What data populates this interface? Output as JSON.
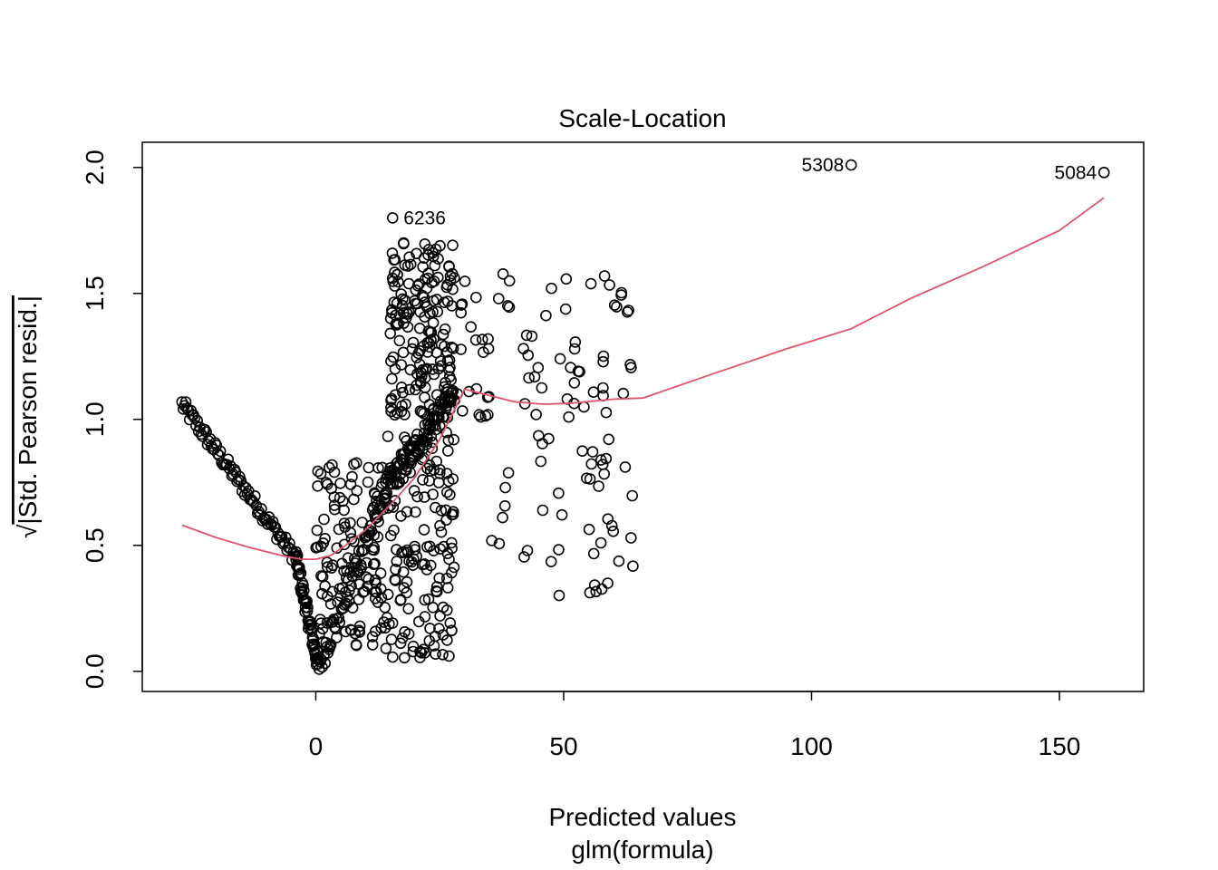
{
  "chart_data": {
    "type": "scatter",
    "title": "Scale-Location",
    "xlabel": "Predicted values",
    "xlabel_sub": "glm(formula)",
    "ylabel_sqrt_sign": "√",
    "ylabel": "|Std. Pearson resid.|",
    "xlim": [
      -35,
      167
    ],
    "ylim": [
      -0.08,
      2.1
    ],
    "x_ticks": [
      0,
      50,
      100,
      150
    ],
    "x_tick_labels": [
      "0",
      "50",
      "100",
      "150"
    ],
    "y_ticks": [
      0.0,
      0.5,
      1.0,
      1.5,
      2.0
    ],
    "y_tick_labels": [
      "0.0",
      "0.5",
      "1.0",
      "1.5",
      "2.0"
    ],
    "grid": false,
    "point_marker": "open-circle",
    "colors": {
      "points": "#000000",
      "smoother": "#DF536B",
      "frame": "#000000"
    },
    "highlighted_points": [
      {
        "label": "5308",
        "x": 108.0,
        "y": 2.01
      },
      {
        "label": "5084",
        "x": 159.0,
        "y": 1.98
      },
      {
        "label": "6236",
        "x": 15.5,
        "y": 1.8
      }
    ],
    "smoother": {
      "name": "",
      "x": [
        -27,
        -20,
        -13,
        -7,
        -3,
        0,
        3,
        6,
        10,
        15,
        20,
        25,
        28,
        30,
        34,
        40,
        46,
        52,
        60,
        66,
        80,
        95,
        108,
        120,
        135,
        150,
        159
      ],
      "y": [
        0.58,
        0.53,
        0.49,
        0.46,
        0.445,
        0.445,
        0.46,
        0.5,
        0.56,
        0.66,
        0.77,
        0.92,
        1.04,
        1.12,
        1.1,
        1.07,
        1.06,
        1.065,
        1.08,
        1.085,
        1.18,
        1.28,
        1.36,
        1.48,
        1.61,
        1.75,
        1.88
      ]
    },
    "clusters": [
      {
        "name": "",
        "type": "curve",
        "n": 90,
        "x": [
          -27,
          -4
        ],
        "y": [
          1.06,
          0.45
        ],
        "jitter_y": 0.03
      },
      {
        "name": "",
        "type": "curve",
        "n": 60,
        "x": [
          -4,
          0.5
        ],
        "y": [
          0.45,
          0.02
        ],
        "jitter_y": 0.04
      },
      {
        "name": "",
        "type": "curve",
        "n": 70,
        "x": [
          0.5,
          14
        ],
        "y": [
          0.02,
          0.72
        ],
        "jitter_y": 0.06
      },
      {
        "name": "",
        "type": "curve",
        "n": 90,
        "x": [
          14,
          28
        ],
        "y": [
          0.72,
          1.1
        ],
        "jitter_y": 0.05
      },
      {
        "name": "",
        "type": "band",
        "n": 160,
        "x": [
          13,
          28
        ],
        "y": [
          0.05,
          0.95
        ]
      },
      {
        "name": "",
        "type": "band",
        "n": 180,
        "x": [
          15,
          28
        ],
        "y": [
          1.0,
          1.72
        ]
      },
      {
        "name": "",
        "type": "band",
        "n": 110,
        "x": [
          0,
          13
        ],
        "y": [
          0.1,
          0.85
        ]
      },
      {
        "name": "",
        "type": "band",
        "n": 70,
        "x": [
          28,
          64
        ],
        "y": [
          1.0,
          1.58
        ]
      },
      {
        "name": "",
        "type": "band",
        "n": 45,
        "x": [
          35,
          64
        ],
        "y": [
          0.3,
          1.0
        ]
      }
    ]
  }
}
